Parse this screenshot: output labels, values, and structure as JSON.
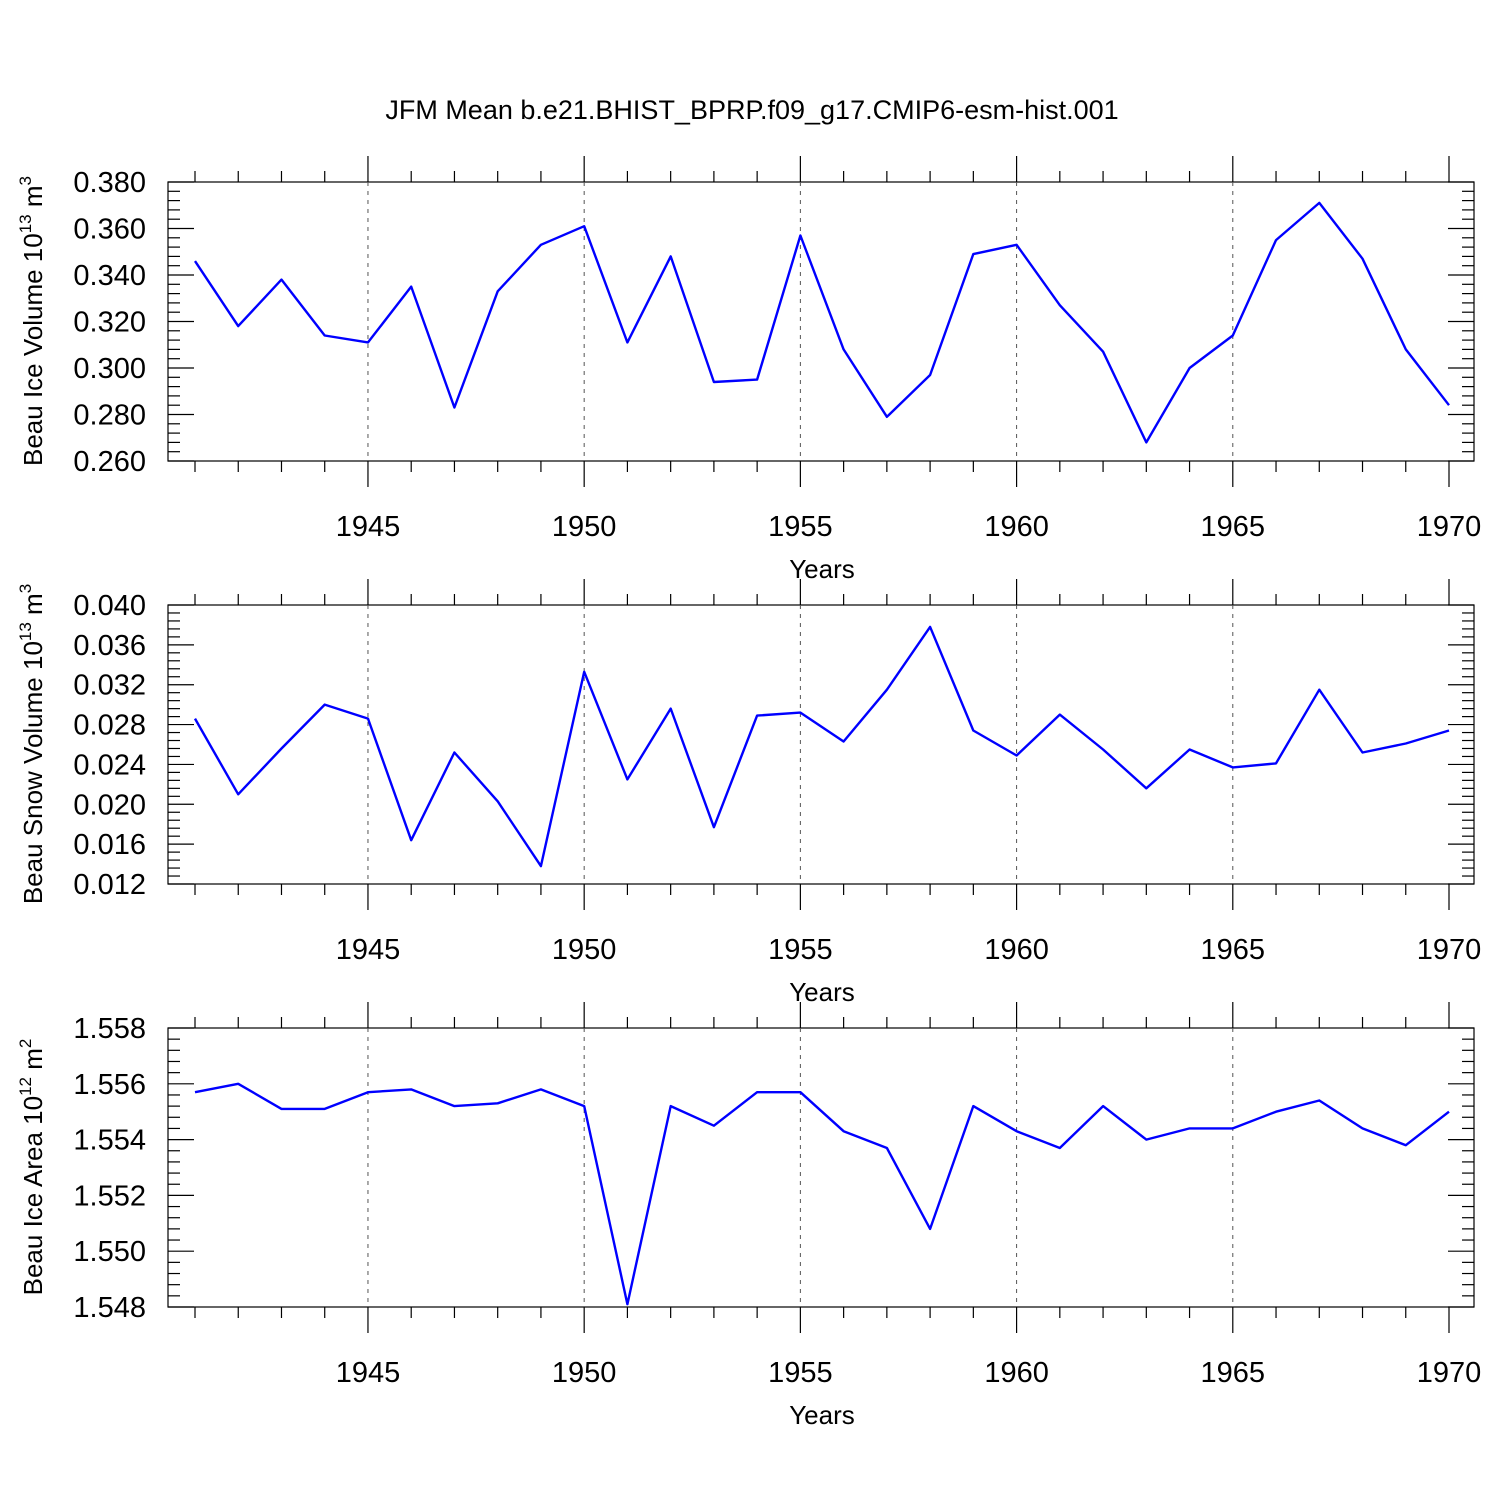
{
  "figure_title": "JFM Mean b.e21.BHIST_BPRP.f09_g17.CMIP6-esm-hist.001",
  "line_color": "#0000ff",
  "chart_data": [
    {
      "type": "line",
      "ylabel": "Beau Ice Volume 10",
      "ylabel_exp": "13",
      "ylabel_unit": " m",
      "ylabel_unit_exp": "3",
      "xlabel": "Years",
      "xlim": [
        1941,
        1970
      ],
      "ylim": [
        0.26,
        0.38
      ],
      "yticks": [
        "0.260",
        "0.280",
        "0.300",
        "0.320",
        "0.340",
        "0.360",
        "0.380"
      ],
      "xticks": [
        "1945",
        "1950",
        "1955",
        "1960",
        "1965",
        "1970"
      ],
      "x": [
        1941,
        1942,
        1943,
        1944,
        1945,
        1946,
        1947,
        1948,
        1949,
        1950,
        1951,
        1952,
        1953,
        1954,
        1955,
        1956,
        1957,
        1958,
        1959,
        1960,
        1961,
        1962,
        1963,
        1964,
        1965,
        1966,
        1967,
        1968,
        1969,
        1970
      ],
      "values": [
        0.346,
        0.318,
        0.338,
        0.314,
        0.311,
        0.335,
        0.283,
        0.333,
        0.353,
        0.361,
        0.311,
        0.348,
        0.294,
        0.295,
        0.357,
        0.308,
        0.279,
        0.297,
        0.349,
        0.353,
        0.327,
        0.307,
        0.268,
        0.3,
        0.314,
        0.355,
        0.371,
        0.347,
        0.308,
        0.284
      ]
    },
    {
      "type": "line",
      "ylabel": "Beau Snow Volume 10",
      "ylabel_exp": "13",
      "ylabel_unit": " m",
      "ylabel_unit_exp": "3",
      "xlabel": "Years",
      "xlim": [
        1941,
        1970
      ],
      "ylim": [
        0.012,
        0.04
      ],
      "yticks": [
        "0.012",
        "0.016",
        "0.020",
        "0.024",
        "0.028",
        "0.032",
        "0.036",
        "0.040"
      ],
      "xticks": [
        "1945",
        "1950",
        "1955",
        "1960",
        "1965",
        "1970"
      ],
      "x": [
        1941,
        1942,
        1943,
        1944,
        1945,
        1946,
        1947,
        1948,
        1949,
        1950,
        1951,
        1952,
        1953,
        1954,
        1955,
        1956,
        1957,
        1958,
        1959,
        1960,
        1961,
        1962,
        1963,
        1964,
        1965,
        1966,
        1967,
        1968,
        1969,
        1970
      ],
      "values": [
        0.0286,
        0.021,
        0.0256,
        0.03,
        0.0286,
        0.0164,
        0.0252,
        0.0203,
        0.0138,
        0.0333,
        0.0225,
        0.0296,
        0.0177,
        0.0289,
        0.0292,
        0.0263,
        0.0315,
        0.0378,
        0.0274,
        0.0249,
        0.029,
        0.0255,
        0.0216,
        0.0255,
        0.0237,
        0.0241,
        0.0315,
        0.0252,
        0.0261,
        0.0274
      ]
    },
    {
      "type": "line",
      "ylabel": "Beau Ice Area 10",
      "ylabel_exp": "12",
      "ylabel_unit": " m",
      "ylabel_unit_exp": "2",
      "xlabel": "Years",
      "xlim": [
        1941,
        1970
      ],
      "ylim": [
        1.548,
        1.558
      ],
      "yticks": [
        "1.548",
        "1.550",
        "1.552",
        "1.554",
        "1.556",
        "1.558"
      ],
      "xticks": [
        "1945",
        "1950",
        "1955",
        "1960",
        "1965",
        "1970"
      ],
      "x": [
        1941,
        1942,
        1943,
        1944,
        1945,
        1946,
        1947,
        1948,
        1949,
        1950,
        1951,
        1952,
        1953,
        1954,
        1955,
        1956,
        1957,
        1958,
        1959,
        1960,
        1961,
        1962,
        1963,
        1964,
        1965,
        1966,
        1967,
        1968,
        1969,
        1970
      ],
      "values": [
        1.5557,
        1.556,
        1.5551,
        1.5551,
        1.5557,
        1.5558,
        1.5552,
        1.5553,
        1.5558,
        1.5552,
        1.5481,
        1.5552,
        1.5545,
        1.5557,
        1.5557,
        1.5543,
        1.5537,
        1.5508,
        1.5552,
        1.5543,
        1.5537,
        1.5552,
        1.554,
        1.5544,
        1.5544,
        1.555,
        1.5554,
        1.5544,
        1.5538,
        1.555
      ]
    }
  ]
}
